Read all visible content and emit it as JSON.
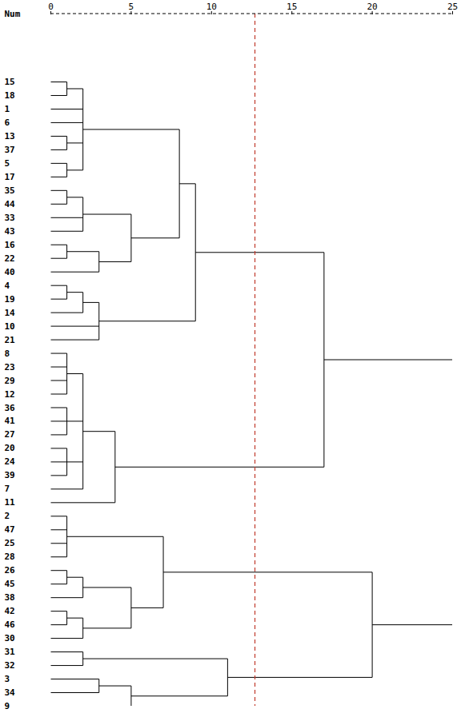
{
  "chart_data": {
    "type": "dendrogram",
    "y_label": "Num",
    "xlim": [
      0,
      25
    ],
    "xticks": [
      0,
      5,
      10,
      15,
      20,
      25
    ],
    "cut_line": {
      "value": 12.7,
      "color": "#c0392b",
      "line_style": "dashed"
    },
    "tree": {
      "height": 25,
      "children": [
        {
          "height": 17,
          "children": [
            {
              "height": 9,
              "children": [
                {
                  "height": 8,
                  "children": [
                    {
                      "height": 2,
                      "children": [
                        {
                          "height": 1,
                          "children": [
                            15,
                            18
                          ]
                        },
                        1,
                        6,
                        {
                          "height": 1,
                          "children": [
                            13,
                            37
                          ]
                        },
                        {
                          "height": 1,
                          "children": [
                            5,
                            17
                          ]
                        }
                      ]
                    },
                    {
                      "height": 5,
                      "children": [
                        {
                          "height": 2,
                          "children": [
                            {
                              "height": 1,
                              "children": [
                                35,
                                44
                              ]
                            },
                            33,
                            43
                          ]
                        },
                        {
                          "height": 3,
                          "children": [
                            {
                              "height": 1,
                              "children": [
                                16,
                                22
                              ]
                            },
                            40
                          ]
                        }
                      ]
                    }
                  ]
                },
                {
                  "height": 3,
                  "children": [
                    {
                      "height": 2,
                      "children": [
                        {
                          "height": 1,
                          "children": [
                            4,
                            19
                          ]
                        },
                        14
                      ]
                    },
                    10,
                    21
                  ]
                }
              ]
            },
            {
              "height": 4,
              "children": [
                {
                  "height": 2,
                  "children": [
                    {
                      "height": 1,
                      "children": [
                        8,
                        23,
                        29,
                        12
                      ]
                    },
                    {
                      "height": 1,
                      "children": [
                        36,
                        41,
                        27
                      ]
                    },
                    {
                      "height": 1,
                      "children": [
                        20,
                        24,
                        39
                      ]
                    },
                    7
                  ]
                },
                11
              ]
            }
          ]
        },
        {
          "height": 20,
          "children": [
            {
              "height": 7,
              "children": [
                {
                  "height": 1,
                  "children": [
                    2,
                    47,
                    25,
                    28
                  ]
                },
                {
                  "height": 5,
                  "children": [
                    {
                      "height": 2,
                      "children": [
                        {
                          "height": 1,
                          "children": [
                            26,
                            45
                          ]
                        },
                        38
                      ]
                    },
                    {
                      "height": 2,
                      "children": [
                        {
                          "height": 1,
                          "children": [
                            42,
                            46
                          ]
                        },
                        30
                      ]
                    }
                  ]
                }
              ]
            },
            {
              "height": 11,
              "children": [
                {
                  "height": 2,
                  "children": [
                    31,
                    32
                  ]
                },
                {
                  "height": 5,
                  "children": [
                    {
                      "height": 3,
                      "children": [
                        3,
                        34
                      ]
                    },
                    9
                  ]
                }
              ]
            }
          ]
        }
      ]
    }
  }
}
